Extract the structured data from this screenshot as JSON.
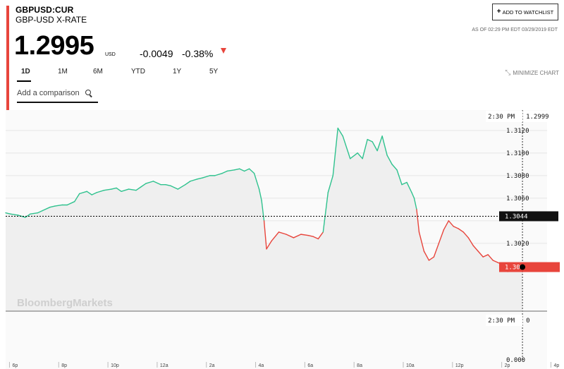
{
  "header": {
    "ticker": "GBPUSD:CUR",
    "name": "GBP-USD X-RATE",
    "price": "1.2995",
    "currency": "USD",
    "change": "-0.0049",
    "change_pct": "-0.38%",
    "watchlist_label": "ADD TO WATCHLIST",
    "as_of": "AS OF 02:29 PM EDT 03/29/2019 EDT"
  },
  "tabs": [
    "1D",
    "1M",
    "6M",
    "YTD",
    "1Y",
    "5Y"
  ],
  "active_tab": "1D",
  "minimize_label": "MINIMIZE CHART",
  "comparison": {
    "placeholder": "Add a comparison"
  },
  "colors": {
    "up": "#2fc28e",
    "down": "#e8453c",
    "fill": "#f1f1f1",
    "accent": "#e8453c"
  },
  "chart_data": {
    "type": "line",
    "watermark": "BloombergMarkets",
    "previous_close": 1.3044,
    "previous_close_label": "1.3044",
    "current_label": "1.30",
    "crosshair_time": "2:30 PM",
    "crosshair_value": "1.2999",
    "volume_crosshair_value": "0",
    "volume_axis_label": "0.000",
    "y_ticks": [
      1.3,
      1.302,
      1.304,
      1.306,
      1.308,
      1.31,
      1.312
    ],
    "y_tick_labels": [
      "1.3020",
      "1.3060",
      "1.3080",
      "1.3100",
      "1.3120"
    ],
    "x_ticks": [
      "6p",
      "8p",
      "10p",
      "12a",
      "2a",
      "4a",
      "6a",
      "8a",
      "10a",
      "12p",
      "2p",
      "4p"
    ],
    "ylim": [
      1.296,
      1.3138
    ],
    "x_hours": [
      -6.5,
      15.5
    ],
    "series": [
      {
        "x": [
          -6.5,
          -6.3,
          -6.0,
          -5.7,
          -5.5,
          -5.2,
          -5.0,
          -4.7,
          -4.5,
          -4.2,
          -4.0,
          -3.7,
          -3.5,
          -3.2,
          -3.0,
          -2.8,
          -2.5,
          -2.2,
          -2.0,
          -1.8,
          -1.5,
          -1.2,
          -1.0,
          -0.8,
          -0.5,
          -0.2,
          0.0,
          0.2,
          0.5,
          0.8,
          1.0,
          1.3,
          1.5,
          1.8,
          2.0,
          2.3,
          2.5,
          2.8,
          3.0,
          3.2,
          3.4,
          3.6,
          3.8,
          3.9,
          4.0,
          4.1,
          4.3,
          4.6,
          4.9,
          5.2,
          5.5,
          5.8,
          6.0,
          6.2,
          6.4,
          6.6,
          6.8,
          7.0,
          7.2,
          7.5,
          7.8,
          8.0,
          8.2,
          8.4,
          8.6,
          8.8,
          9.0,
          9.2,
          9.4,
          9.6,
          9.8,
          10.0,
          10.1,
          10.2,
          10.3,
          10.5,
          10.7,
          10.9,
          11.1,
          11.3,
          11.5,
          11.7,
          11.9,
          12.1,
          12.3,
          12.5,
          12.7,
          12.9,
          13.1,
          13.3,
          13.5,
          13.7,
          13.9,
          14.1,
          14.3,
          14.5
        ],
        "y": [
          1.3047,
          1.3046,
          1.3045,
          1.3043,
          1.3046,
          1.3047,
          1.3049,
          1.3052,
          1.3053,
          1.3054,
          1.3054,
          1.3057,
          1.3064,
          1.3066,
          1.3063,
          1.3065,
          1.3067,
          1.3068,
          1.3069,
          1.3066,
          1.3068,
          1.3067,
          1.307,
          1.3073,
          1.3075,
          1.3072,
          1.3072,
          1.3071,
          1.3068,
          1.3072,
          1.3075,
          1.3077,
          1.3078,
          1.308,
          1.308,
          1.3082,
          1.3084,
          1.3085,
          1.3086,
          1.3084,
          1.3086,
          1.3082,
          1.3068,
          1.3058,
          1.304,
          1.3015,
          1.3022,
          1.303,
          1.3028,
          1.3025,
          1.3028,
          1.3027,
          1.3026,
          1.3024,
          1.303,
          1.3065,
          1.308,
          1.3122,
          1.3115,
          1.3095,
          1.31,
          1.3095,
          1.3112,
          1.311,
          1.3102,
          1.3115,
          1.3098,
          1.309,
          1.3085,
          1.3072,
          1.3074,
          1.3065,
          1.306,
          1.305,
          1.303,
          1.3013,
          1.3005,
          1.3008,
          1.302,
          1.3032,
          1.304,
          1.3035,
          1.3033,
          1.303,
          1.3025,
          1.3018,
          1.3013,
          1.3008,
          1.301,
          1.3005,
          1.3003,
          1.3001,
          1.2995,
          1.2998,
          1.3,
          1.2999
        ]
      }
    ]
  }
}
